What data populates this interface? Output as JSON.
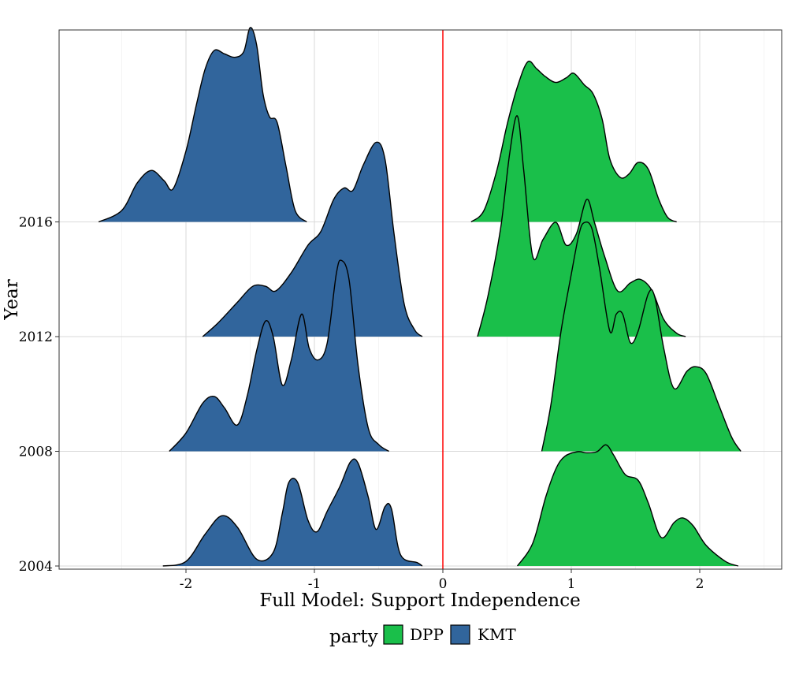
{
  "chart_data": {
    "type": "ridgeline",
    "xlabel": "Full Model: Support Independence",
    "ylabel": "Year",
    "xlim": [
      -2.95,
      2.6
    ],
    "x_ticks": [
      -2,
      -1,
      0,
      1,
      2
    ],
    "x_tick_labels": [
      "-2",
      "-1",
      "0",
      "1",
      "2"
    ],
    "y_categories": [
      "2004",
      "2008",
      "2012",
      "2016"
    ],
    "grid": true,
    "reference_line": {
      "x": 0,
      "color": "#ff0000"
    },
    "legend": {
      "title": "party",
      "position": "bottom",
      "entries": [
        {
          "label": "DPP",
          "color": "#1ABF4A"
        },
        {
          "label": "KMT",
          "color": "#31659C"
        }
      ]
    },
    "series": [
      {
        "party": "KMT",
        "year": "2004",
        "color": "#31659C",
        "points": [
          [
            -2.18,
            0
          ],
          [
            -2.0,
            0.04
          ],
          [
            -1.85,
            0.28
          ],
          [
            -1.72,
            0.44
          ],
          [
            -1.6,
            0.34
          ],
          [
            -1.45,
            0.06
          ],
          [
            -1.32,
            0.12
          ],
          [
            -1.25,
            0.46
          ],
          [
            -1.2,
            0.73
          ],
          [
            -1.13,
            0.73
          ],
          [
            -1.05,
            0.4
          ],
          [
            -0.98,
            0.3
          ],
          [
            -0.9,
            0.48
          ],
          [
            -0.8,
            0.7
          ],
          [
            -0.72,
            0.91
          ],
          [
            -0.66,
            0.9
          ],
          [
            -0.58,
            0.6
          ],
          [
            -0.52,
            0.32
          ],
          [
            -0.45,
            0.52
          ],
          [
            -0.4,
            0.5
          ],
          [
            -0.33,
            0.1
          ],
          [
            -0.2,
            0.03
          ],
          [
            -0.16,
            0
          ]
        ]
      },
      {
        "party": "DPP",
        "year": "2004",
        "color": "#1ABF4A",
        "points": [
          [
            0.58,
            0
          ],
          [
            0.7,
            0.2
          ],
          [
            0.8,
            0.6
          ],
          [
            0.88,
            0.85
          ],
          [
            0.95,
            0.96
          ],
          [
            1.05,
            1.0
          ],
          [
            1.12,
            0.99
          ],
          [
            1.2,
            1.0
          ],
          [
            1.27,
            1.06
          ],
          [
            1.33,
            0.97
          ],
          [
            1.42,
            0.8
          ],
          [
            1.52,
            0.75
          ],
          [
            1.6,
            0.55
          ],
          [
            1.7,
            0.25
          ],
          [
            1.8,
            0.38
          ],
          [
            1.87,
            0.42
          ],
          [
            1.95,
            0.35
          ],
          [
            2.05,
            0.18
          ],
          [
            2.2,
            0.04
          ],
          [
            2.3,
            0
          ]
        ]
      },
      {
        "party": "KMT",
        "year": "2008",
        "color": "#31659C",
        "points": [
          [
            -2.13,
            0
          ],
          [
            -2.0,
            0.16
          ],
          [
            -1.87,
            0.42
          ],
          [
            -1.78,
            0.48
          ],
          [
            -1.7,
            0.38
          ],
          [
            -1.6,
            0.23
          ],
          [
            -1.52,
            0.5
          ],
          [
            -1.45,
            0.88
          ],
          [
            -1.38,
            1.14
          ],
          [
            -1.32,
            1.0
          ],
          [
            -1.25,
            0.58
          ],
          [
            -1.18,
            0.8
          ],
          [
            -1.1,
            1.2
          ],
          [
            -1.04,
            0.9
          ],
          [
            -0.97,
            0.8
          ],
          [
            -0.9,
            0.95
          ],
          [
            -0.83,
            1.55
          ],
          [
            -0.79,
            1.67
          ],
          [
            -0.73,
            1.5
          ],
          [
            -0.66,
            0.75
          ],
          [
            -0.58,
            0.2
          ],
          [
            -0.5,
            0.06
          ],
          [
            -0.42,
            0
          ]
        ]
      },
      {
        "party": "DPP",
        "year": "2008",
        "color": "#1ABF4A",
        "points": [
          [
            0.77,
            0
          ],
          [
            0.84,
            0.4
          ],
          [
            0.92,
            1.05
          ],
          [
            1.0,
            1.55
          ],
          [
            1.06,
            1.9
          ],
          [
            1.1,
            2.0
          ],
          [
            1.16,
            1.95
          ],
          [
            1.22,
            1.6
          ],
          [
            1.3,
            1.05
          ],
          [
            1.35,
            1.2
          ],
          [
            1.4,
            1.2
          ],
          [
            1.46,
            0.95
          ],
          [
            1.52,
            1.05
          ],
          [
            1.6,
            1.38
          ],
          [
            1.65,
            1.35
          ],
          [
            1.72,
            0.9
          ],
          [
            1.8,
            0.55
          ],
          [
            1.9,
            0.7
          ],
          [
            1.97,
            0.74
          ],
          [
            2.05,
            0.68
          ],
          [
            2.15,
            0.4
          ],
          [
            2.25,
            0.12
          ],
          [
            2.32,
            0
          ]
        ]
      },
      {
        "party": "KMT",
        "year": "2012",
        "color": "#31659C",
        "points": [
          [
            -1.87,
            0
          ],
          [
            -1.75,
            0.12
          ],
          [
            -1.6,
            0.3
          ],
          [
            -1.48,
            0.44
          ],
          [
            -1.38,
            0.44
          ],
          [
            -1.3,
            0.4
          ],
          [
            -1.18,
            0.56
          ],
          [
            -1.05,
            0.8
          ],
          [
            -0.95,
            0.92
          ],
          [
            -0.85,
            1.2
          ],
          [
            -0.77,
            1.3
          ],
          [
            -0.7,
            1.28
          ],
          [
            -0.62,
            1.5
          ],
          [
            -0.52,
            1.7
          ],
          [
            -0.45,
            1.55
          ],
          [
            -0.38,
            0.9
          ],
          [
            -0.3,
            0.28
          ],
          [
            -0.22,
            0.06
          ],
          [
            -0.16,
            0
          ]
        ]
      },
      {
        "party": "DPP",
        "year": "2012",
        "color": "#1ABF4A",
        "points": [
          [
            0.27,
            0
          ],
          [
            0.35,
            0.35
          ],
          [
            0.45,
            0.95
          ],
          [
            0.52,
            1.6
          ],
          [
            0.58,
            1.93
          ],
          [
            0.63,
            1.45
          ],
          [
            0.7,
            0.7
          ],
          [
            0.78,
            0.85
          ],
          [
            0.88,
            1.0
          ],
          [
            0.96,
            0.8
          ],
          [
            1.04,
            0.9
          ],
          [
            1.12,
            1.2
          ],
          [
            1.18,
            1.0
          ],
          [
            1.26,
            0.7
          ],
          [
            1.36,
            0.4
          ],
          [
            1.46,
            0.47
          ],
          [
            1.54,
            0.5
          ],
          [
            1.63,
            0.4
          ],
          [
            1.72,
            0.15
          ],
          [
            1.82,
            0.03
          ],
          [
            1.89,
            0
          ]
        ]
      },
      {
        "party": "KMT",
        "year": "2016",
        "color": "#31659C",
        "points": [
          [
            -2.68,
            0
          ],
          [
            -2.5,
            0.1
          ],
          [
            -2.38,
            0.34
          ],
          [
            -2.27,
            0.45
          ],
          [
            -2.17,
            0.36
          ],
          [
            -2.1,
            0.29
          ],
          [
            -2.0,
            0.62
          ],
          [
            -1.92,
            1.02
          ],
          [
            -1.85,
            1.34
          ],
          [
            -1.78,
            1.5
          ],
          [
            -1.7,
            1.47
          ],
          [
            -1.62,
            1.44
          ],
          [
            -1.55,
            1.49
          ],
          [
            -1.5,
            1.7
          ],
          [
            -1.45,
            1.55
          ],
          [
            -1.4,
            1.12
          ],
          [
            -1.35,
            0.92
          ],
          [
            -1.29,
            0.87
          ],
          [
            -1.22,
            0.48
          ],
          [
            -1.15,
            0.1
          ],
          [
            -1.06,
            0
          ]
        ]
      },
      {
        "party": "DPP",
        "year": "2016",
        "color": "#1ABF4A",
        "points": [
          [
            0.22,
            0
          ],
          [
            0.32,
            0.1
          ],
          [
            0.42,
            0.45
          ],
          [
            0.5,
            0.85
          ],
          [
            0.58,
            1.18
          ],
          [
            0.66,
            1.4
          ],
          [
            0.73,
            1.34
          ],
          [
            0.8,
            1.27
          ],
          [
            0.88,
            1.22
          ],
          [
            0.96,
            1.26
          ],
          [
            1.02,
            1.3
          ],
          [
            1.1,
            1.2
          ],
          [
            1.17,
            1.12
          ],
          [
            1.24,
            0.9
          ],
          [
            1.3,
            0.55
          ],
          [
            1.38,
            0.39
          ],
          [
            1.45,
            0.42
          ],
          [
            1.52,
            0.52
          ],
          [
            1.6,
            0.46
          ],
          [
            1.68,
            0.2
          ],
          [
            1.75,
            0.04
          ],
          [
            1.82,
            0
          ]
        ]
      }
    ]
  }
}
